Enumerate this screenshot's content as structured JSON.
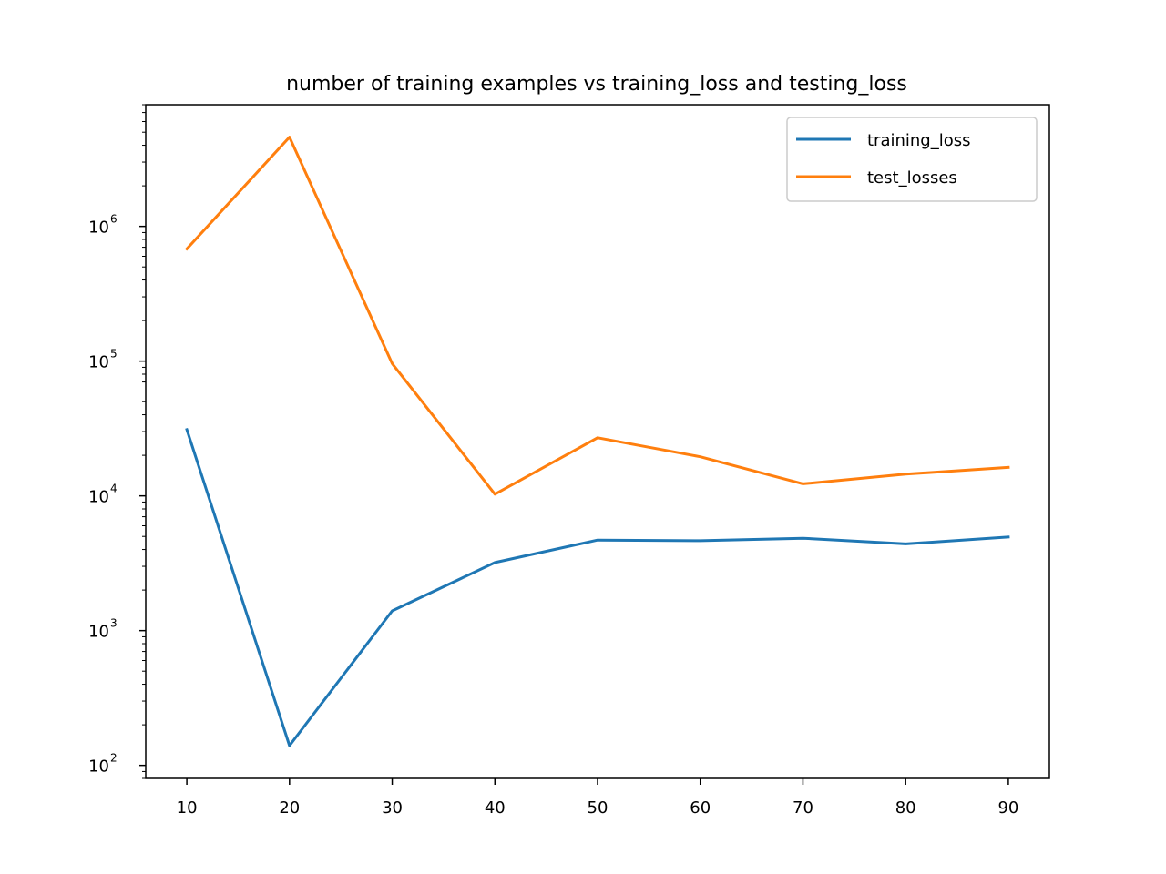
{
  "chart_data": {
    "type": "line",
    "title": "number of training examples vs training_loss and testing_loss",
    "xlabel": "",
    "ylabel": "",
    "x": [
      10,
      20,
      30,
      40,
      50,
      60,
      70,
      80,
      90
    ],
    "xlim": [
      6,
      94
    ],
    "yscale": "log",
    "ylim": [
      80,
      8000000
    ],
    "x_tick_labels": [
      "10",
      "20",
      "30",
      "40",
      "50",
      "60",
      "70",
      "80",
      "90"
    ],
    "y_tick_labels": [
      {
        "base": "10",
        "exponent": "2",
        "value": 100
      },
      {
        "base": "10",
        "exponent": "3",
        "value": 1000
      },
      {
        "base": "10",
        "exponent": "4",
        "value": 10000
      },
      {
        "base": "10",
        "exponent": "5",
        "value": 100000
      },
      {
        "base": "10",
        "exponent": "6",
        "value": 1000000
      }
    ],
    "grid": false,
    "legend_position": "top-right",
    "series": [
      {
        "name": "training_loss",
        "color": "#1f77b4",
        "values": [
          31000,
          140,
          1400,
          3200,
          4700,
          4650,
          4850,
          4400,
          4950
        ]
      },
      {
        "name": "test_losses",
        "color": "#ff7f0e",
        "values": [
          680000,
          4600000,
          96000,
          10300,
          27000,
          19500,
          12300,
          14500,
          16300
        ]
      }
    ]
  }
}
